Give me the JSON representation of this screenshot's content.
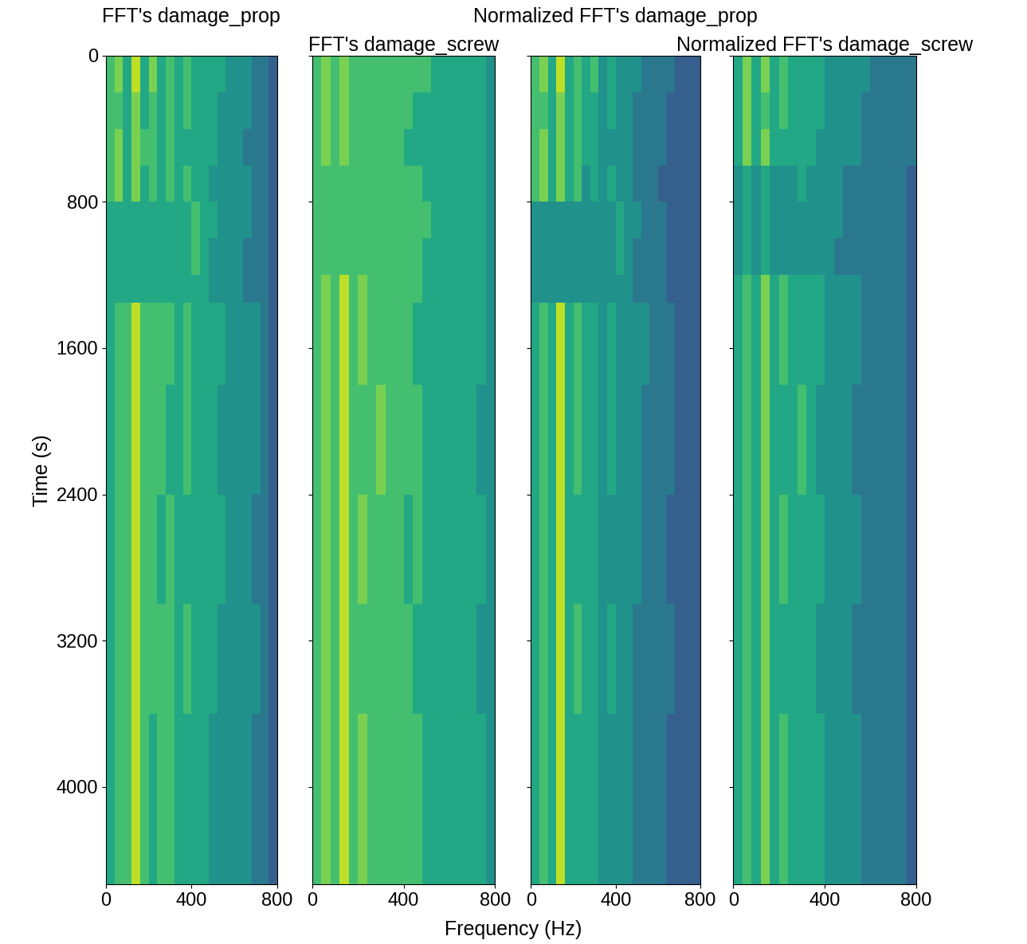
{
  "xlabel": "Frequency (Hz)",
  "chart_data": [
    {
      "type": "heatmap",
      "title": "FFT's damage_prop",
      "ylabel": "Time (s)",
      "color": "viridis",
      "x_edges": [
        0,
        40,
        80,
        120,
        160,
        200,
        240,
        280,
        320,
        360,
        400,
        440,
        480,
        520,
        560,
        600,
        640,
        680,
        720,
        760,
        800
      ],
      "y_edges": [
        0,
        200,
        400,
        600,
        800,
        1000,
        1200,
        1350,
        1800,
        2400,
        3000,
        3600,
        4535
      ],
      "zlim": [
        0,
        10
      ],
      "xlim": [
        0,
        800
      ],
      "ylim": [
        4535,
        0
      ],
      "xticks": [
        0,
        400,
        800
      ],
      "yticks": [
        0,
        800,
        1600,
        2400,
        3200,
        4000
      ],
      "cells": [
        [
          7,
          8,
          6,
          9,
          6,
          8,
          6,
          7,
          6,
          7,
          6,
          6,
          6,
          6,
          5,
          5,
          5,
          4,
          4,
          3
        ],
        [
          7,
          7,
          6,
          8,
          6,
          7,
          6,
          7,
          6,
          7,
          6,
          6,
          6,
          5,
          5,
          5,
          5,
          4,
          4,
          3
        ],
        [
          7,
          8,
          6,
          8,
          7,
          7,
          6,
          7,
          6,
          6,
          6,
          6,
          6,
          5,
          5,
          5,
          4,
          4,
          4,
          3
        ],
        [
          7,
          8,
          6,
          8,
          6,
          7,
          6,
          7,
          6,
          7,
          6,
          6,
          5,
          5,
          5,
          5,
          5,
          4,
          4,
          3
        ],
        [
          6,
          6,
          6,
          6,
          6,
          6,
          6,
          6,
          6,
          6,
          7,
          6,
          6,
          5,
          5,
          5,
          5,
          4,
          4,
          3
        ],
        [
          6,
          6,
          6,
          6,
          6,
          6,
          6,
          6,
          6,
          6,
          7,
          6,
          5,
          5,
          5,
          5,
          4,
          4,
          4,
          3
        ],
        [
          6,
          6,
          6,
          6,
          6,
          6,
          6,
          6,
          6,
          6,
          6,
          6,
          5,
          5,
          5,
          5,
          4,
          4,
          4,
          3
        ],
        [
          6,
          7,
          7,
          9,
          7,
          7,
          7,
          7,
          6,
          7,
          6,
          6,
          6,
          6,
          5,
          5,
          5,
          5,
          4,
          3
        ],
        [
          6,
          7,
          7,
          9,
          7,
          7,
          7,
          6,
          6,
          7,
          6,
          6,
          6,
          5,
          5,
          5,
          5,
          5,
          4,
          3
        ],
        [
          6,
          7,
          7,
          9,
          7,
          7,
          6,
          7,
          6,
          6,
          6,
          6,
          6,
          6,
          5,
          5,
          5,
          4,
          4,
          3
        ],
        [
          6,
          7,
          7,
          9,
          7,
          7,
          7,
          7,
          6,
          7,
          6,
          6,
          6,
          5,
          5,
          5,
          5,
          5,
          4,
          3
        ],
        [
          6,
          7,
          7,
          9,
          7,
          6,
          7,
          7,
          6,
          6,
          6,
          6,
          5,
          5,
          5,
          5,
          5,
          4,
          4,
          3
        ]
      ]
    },
    {
      "type": "heatmap",
      "title": "FFT's damage_screw",
      "color": "viridis",
      "tick_labels": "x",
      "x_edges": [
        0,
        40,
        80,
        120,
        160,
        200,
        240,
        280,
        320,
        360,
        400,
        440,
        480,
        520,
        560,
        600,
        640,
        680,
        720,
        760,
        800
      ],
      "y_edges": [
        0,
        200,
        400,
        600,
        800,
        1000,
        1200,
        1350,
        1800,
        2400,
        3000,
        3600,
        4535
      ],
      "zlim": [
        0,
        10
      ],
      "xlim": [
        0,
        800
      ],
      "ylim": [
        4535,
        0
      ],
      "xticks": [
        0,
        400,
        800
      ],
      "yticks": [
        0,
        800,
        1600,
        2400,
        3200,
        4000
      ],
      "cells": [
        [
          7,
          8,
          7,
          8,
          7,
          7,
          7,
          7,
          7,
          7,
          7,
          7,
          7,
          6,
          6,
          6,
          6,
          6,
          6,
          5
        ],
        [
          7,
          8,
          7,
          8,
          7,
          7,
          7,
          7,
          7,
          7,
          7,
          6,
          6,
          6,
          6,
          6,
          6,
          6,
          6,
          5
        ],
        [
          7,
          8,
          7,
          8,
          7,
          7,
          7,
          7,
          7,
          7,
          6,
          6,
          6,
          6,
          6,
          6,
          6,
          6,
          6,
          5
        ],
        [
          7,
          7,
          7,
          7,
          7,
          7,
          7,
          7,
          7,
          7,
          7,
          7,
          6,
          6,
          6,
          6,
          6,
          6,
          6,
          5
        ],
        [
          7,
          7,
          7,
          7,
          7,
          7,
          7,
          7,
          7,
          7,
          7,
          7,
          7,
          6,
          6,
          6,
          6,
          6,
          6,
          5
        ],
        [
          7,
          7,
          7,
          7,
          7,
          7,
          7,
          7,
          7,
          7,
          7,
          7,
          6,
          6,
          6,
          6,
          6,
          6,
          6,
          5
        ],
        [
          7,
          8,
          7,
          9,
          7,
          8,
          7,
          7,
          7,
          7,
          7,
          7,
          6,
          6,
          6,
          6,
          6,
          6,
          6,
          5
        ],
        [
          7,
          8,
          7,
          9,
          7,
          8,
          7,
          7,
          7,
          7,
          7,
          6,
          6,
          6,
          6,
          6,
          6,
          6,
          6,
          5
        ],
        [
          7,
          8,
          7,
          9,
          7,
          7,
          7,
          8,
          7,
          7,
          7,
          7,
          6,
          6,
          6,
          6,
          6,
          6,
          5,
          5
        ],
        [
          7,
          8,
          7,
          9,
          7,
          8,
          7,
          7,
          7,
          7,
          6,
          7,
          6,
          6,
          6,
          6,
          6,
          6,
          6,
          5
        ],
        [
          7,
          8,
          7,
          9,
          7,
          7,
          7,
          7,
          7,
          7,
          7,
          6,
          6,
          6,
          6,
          6,
          6,
          6,
          5,
          5
        ],
        [
          7,
          8,
          7,
          9,
          7,
          8,
          7,
          7,
          7,
          7,
          7,
          7,
          6,
          6,
          6,
          6,
          6,
          6,
          6,
          5
        ]
      ]
    },
    {
      "type": "heatmap",
      "title": "Normalized FFT's damage_prop",
      "color": "viridis",
      "tick_labels": "x",
      "x_edges": [
        0,
        40,
        80,
        120,
        160,
        200,
        240,
        280,
        320,
        360,
        400,
        440,
        480,
        520,
        560,
        600,
        640,
        680,
        720,
        760,
        800
      ],
      "y_edges": [
        0,
        200,
        400,
        600,
        800,
        1000,
        1200,
        1350,
        1800,
        2400,
        3000,
        3600,
        4535
      ],
      "zlim": [
        0,
        10
      ],
      "xlim": [
        0,
        800
      ],
      "ylim": [
        4535,
        0
      ],
      "xticks": [
        0,
        400,
        800
      ],
      "yticks": [
        0,
        800,
        1600,
        2400,
        3200,
        4000
      ],
      "cells": [
        [
          7,
          8,
          6,
          9,
          6,
          7,
          6,
          7,
          5,
          6,
          5,
          5,
          5,
          4,
          4,
          4,
          4,
          3,
          3,
          3
        ],
        [
          7,
          7,
          6,
          8,
          6,
          7,
          6,
          6,
          5,
          6,
          5,
          5,
          4,
          4,
          4,
          4,
          3,
          3,
          3,
          3
        ],
        [
          7,
          8,
          6,
          8,
          6,
          7,
          6,
          6,
          5,
          5,
          5,
          5,
          4,
          4,
          4,
          4,
          3,
          3,
          3,
          3
        ],
        [
          7,
          8,
          6,
          8,
          6,
          7,
          5,
          6,
          5,
          6,
          5,
          5,
          4,
          4,
          4,
          3,
          3,
          3,
          3,
          3
        ],
        [
          5,
          5,
          5,
          5,
          5,
          5,
          5,
          5,
          5,
          5,
          6,
          5,
          5,
          4,
          4,
          4,
          3,
          3,
          3,
          3
        ],
        [
          5,
          5,
          5,
          5,
          5,
          5,
          5,
          5,
          5,
          5,
          6,
          5,
          4,
          4,
          4,
          4,
          3,
          3,
          3,
          3
        ],
        [
          5,
          5,
          5,
          5,
          5,
          5,
          5,
          5,
          5,
          5,
          5,
          5,
          4,
          4,
          4,
          4,
          3,
          3,
          3,
          3
        ],
        [
          6,
          7,
          6,
          9,
          6,
          7,
          6,
          6,
          5,
          6,
          5,
          5,
          5,
          5,
          4,
          4,
          4,
          3,
          3,
          3
        ],
        [
          6,
          7,
          6,
          9,
          6,
          7,
          6,
          6,
          5,
          6,
          5,
          5,
          5,
          4,
          4,
          4,
          4,
          3,
          3,
          3
        ],
        [
          6,
          7,
          6,
          9,
          6,
          6,
          6,
          6,
          5,
          5,
          5,
          5,
          5,
          4,
          4,
          4,
          3,
          3,
          3,
          3
        ],
        [
          6,
          7,
          6,
          9,
          6,
          7,
          6,
          6,
          5,
          6,
          5,
          5,
          4,
          4,
          4,
          4,
          4,
          3,
          3,
          3
        ],
        [
          6,
          7,
          6,
          9,
          6,
          6,
          6,
          6,
          5,
          5,
          5,
          5,
          4,
          4,
          4,
          4,
          3,
          3,
          3,
          3
        ]
      ]
    },
    {
      "type": "heatmap",
      "title": "Normalized FFT's damage_screw",
      "color": "viridis",
      "tick_labels": "x",
      "x_edges": [
        0,
        40,
        80,
        120,
        160,
        200,
        240,
        280,
        320,
        360,
        400,
        440,
        480,
        520,
        560,
        600,
        640,
        680,
        720,
        760,
        800
      ],
      "y_edges": [
        0,
        200,
        400,
        600,
        800,
        1000,
        1200,
        1350,
        1800,
        2400,
        3000,
        3600,
        4535
      ],
      "zlim": [
        0,
        10
      ],
      "xlim": [
        0,
        800
      ],
      "ylim": [
        4535,
        0
      ],
      "xticks": [
        0,
        400,
        800
      ],
      "yticks": [
        0,
        800,
        1600,
        2400,
        3200,
        4000
      ],
      "cells": [
        [
          6,
          8,
          6,
          8,
          6,
          7,
          6,
          6,
          6,
          6,
          5,
          5,
          5,
          5,
          5,
          4,
          4,
          4,
          4,
          4
        ],
        [
          6,
          8,
          6,
          7,
          6,
          7,
          6,
          6,
          6,
          6,
          5,
          5,
          5,
          5,
          4,
          4,
          4,
          4,
          4,
          4
        ],
        [
          6,
          8,
          6,
          8,
          6,
          6,
          6,
          6,
          6,
          5,
          5,
          5,
          5,
          5,
          4,
          4,
          4,
          4,
          4,
          4
        ],
        [
          5,
          6,
          5,
          6,
          5,
          5,
          5,
          6,
          5,
          5,
          5,
          5,
          4,
          4,
          4,
          4,
          4,
          4,
          4,
          3
        ],
        [
          5,
          6,
          5,
          6,
          5,
          5,
          5,
          5,
          5,
          5,
          5,
          5,
          4,
          4,
          4,
          4,
          4,
          4,
          4,
          3
        ],
        [
          5,
          6,
          5,
          6,
          5,
          5,
          5,
          5,
          5,
          5,
          5,
          4,
          4,
          4,
          4,
          4,
          4,
          4,
          4,
          3
        ],
        [
          6,
          7,
          6,
          8,
          6,
          7,
          6,
          6,
          6,
          6,
          5,
          5,
          5,
          5,
          4,
          4,
          4,
          4,
          4,
          3
        ],
        [
          6,
          7,
          6,
          8,
          6,
          7,
          6,
          6,
          6,
          6,
          5,
          5,
          5,
          5,
          4,
          4,
          4,
          4,
          4,
          3
        ],
        [
          6,
          7,
          6,
          8,
          6,
          6,
          6,
          7,
          6,
          5,
          5,
          5,
          5,
          4,
          4,
          4,
          4,
          4,
          4,
          3
        ],
        [
          6,
          7,
          6,
          8,
          6,
          7,
          6,
          6,
          6,
          6,
          5,
          5,
          5,
          5,
          4,
          4,
          4,
          4,
          4,
          3
        ],
        [
          6,
          7,
          6,
          8,
          6,
          6,
          6,
          6,
          6,
          5,
          5,
          5,
          5,
          4,
          4,
          4,
          4,
          4,
          4,
          3
        ],
        [
          6,
          7,
          6,
          8,
          6,
          7,
          6,
          6,
          6,
          6,
          5,
          5,
          5,
          5,
          4,
          4,
          4,
          4,
          4,
          3
        ]
      ]
    }
  ]
}
